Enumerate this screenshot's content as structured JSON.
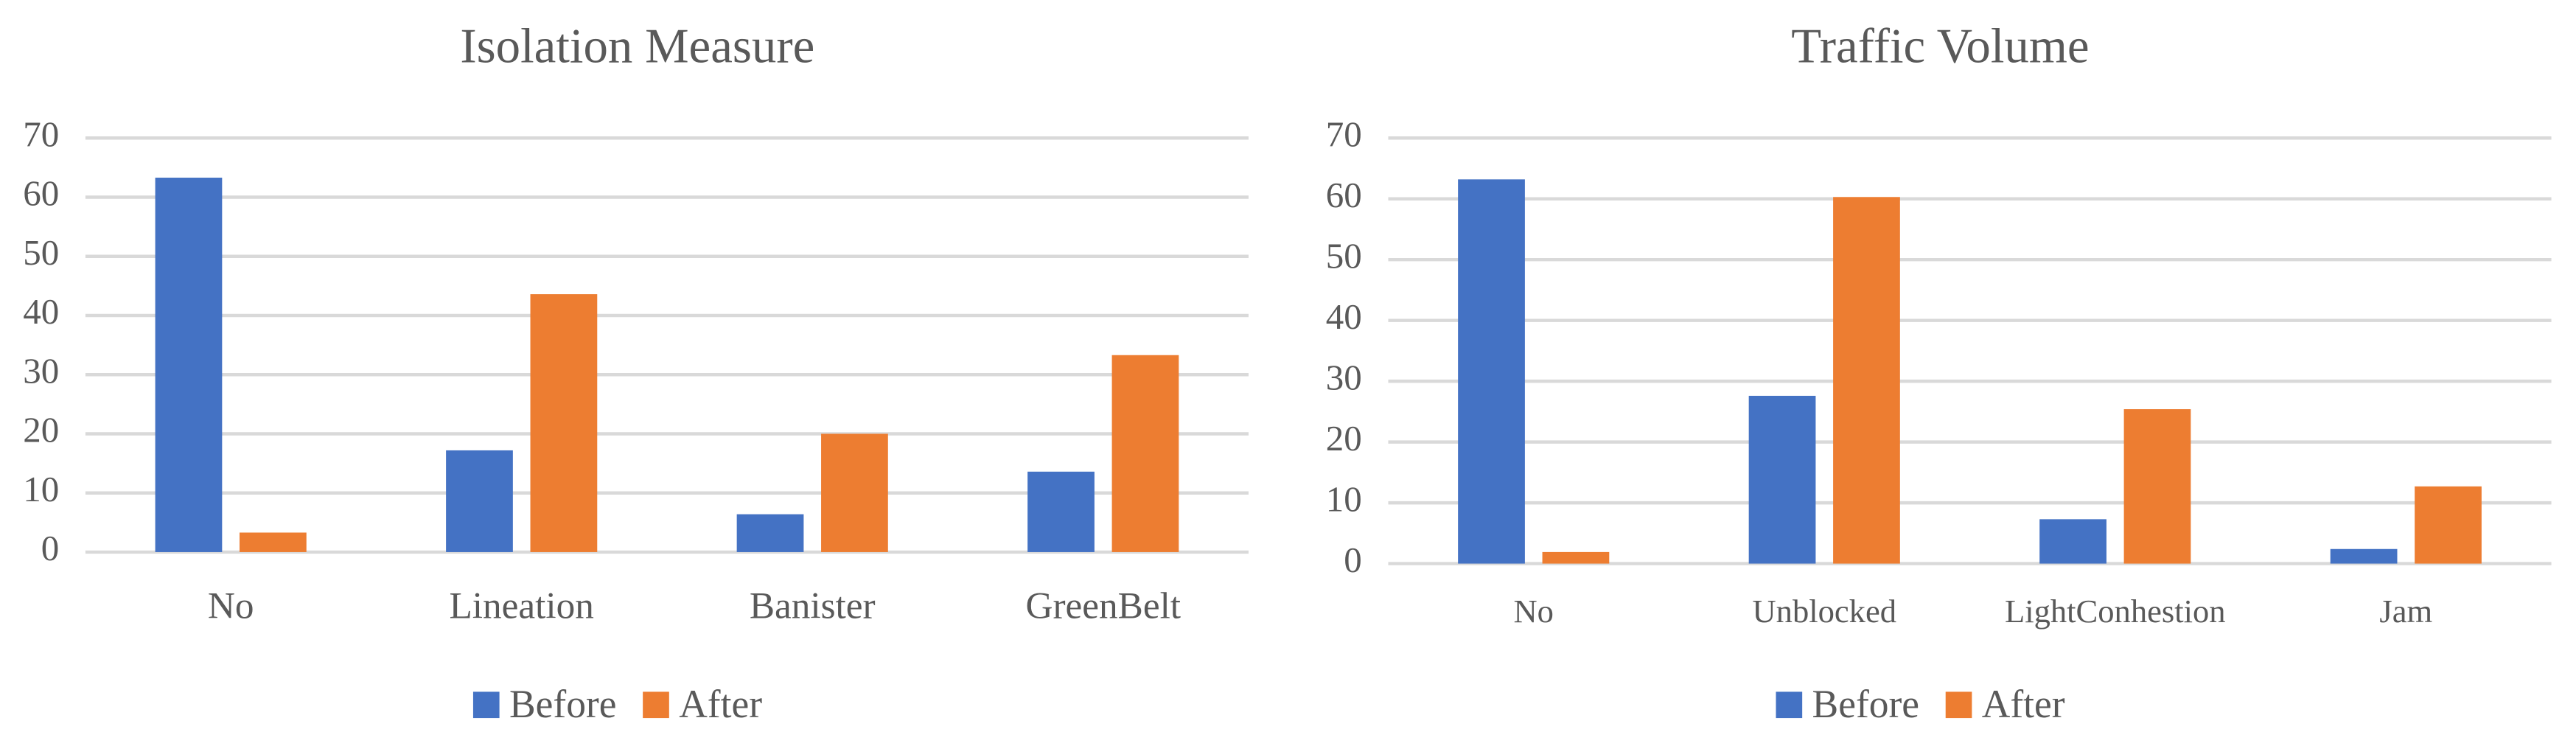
{
  "chart_data": [
    {
      "type": "bar",
      "title": "Isolation Measure",
      "categories": [
        "No",
        "Lineation",
        "Banister",
        "GreenBelt"
      ],
      "series": [
        {
          "name": "Before",
          "color": "#4472c4",
          "values": [
            63.3,
            17.2,
            6.4,
            13.6
          ]
        },
        {
          "name": "After",
          "color": "#ed7d31",
          "values": [
            3.3,
            43.6,
            20,
            33.3
          ]
        }
      ],
      "ylim": [
        0,
        70
      ],
      "yticks": [
        0,
        10,
        20,
        30,
        40,
        50,
        60,
        70
      ],
      "grid": true,
      "legend": "bottom"
    },
    {
      "type": "bar",
      "title": "Traffic Volume",
      "categories": [
        "No",
        "Unblocked",
        "LightConhestion",
        "Jam"
      ],
      "series": [
        {
          "name": "Before",
          "color": "#4472c4",
          "values": [
            63.2,
            27.6,
            7.3,
            2.4
          ]
        },
        {
          "name": "After",
          "color": "#ed7d31",
          "values": [
            1.9,
            60.3,
            25.4,
            12.7
          ]
        }
      ],
      "ylim": [
        0,
        70
      ],
      "yticks": [
        0,
        10,
        20,
        30,
        40,
        50,
        60,
        70
      ],
      "grid": true,
      "legend": "bottom"
    }
  ]
}
